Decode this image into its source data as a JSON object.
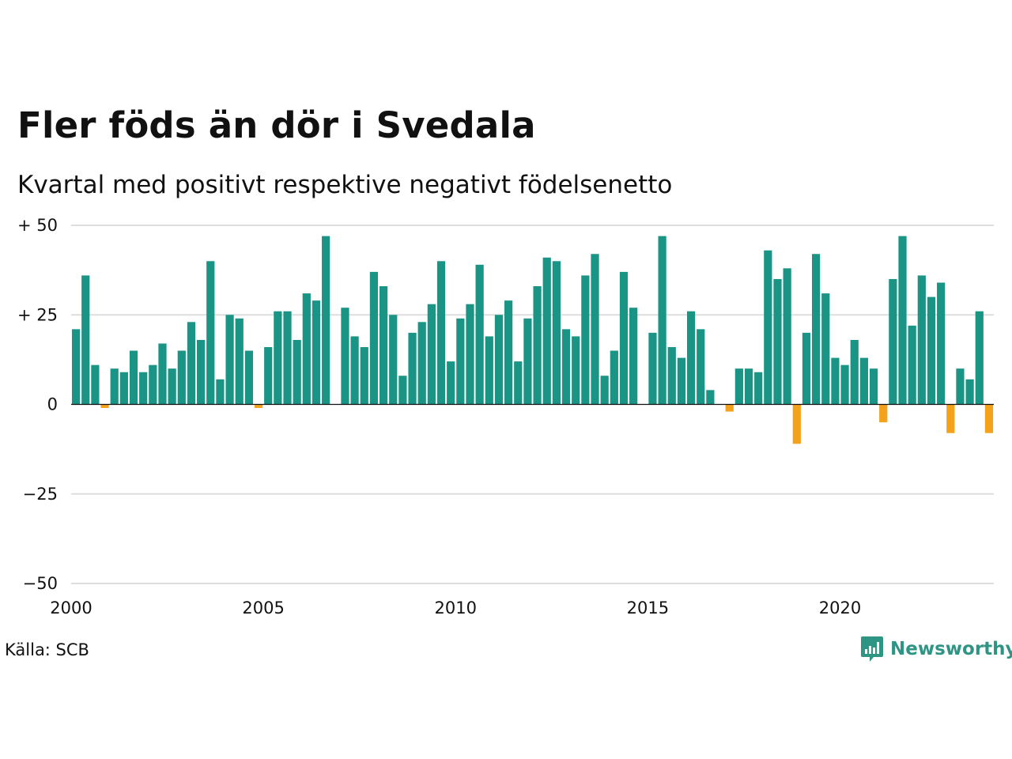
{
  "chart_data": {
    "type": "bar",
    "title": "Fler föds än dör i Svedala",
    "subtitle": "Kvartal med positivt respektive negativt födelsenetto",
    "source": "Källa: SCB",
    "ylim": [
      -50,
      50
    ],
    "y_ticks": [
      {
        "value": 50,
        "label": "+ 50"
      },
      {
        "value": 25,
        "label": "+ 25"
      },
      {
        "value": 0,
        "label": "0"
      },
      {
        "value": -25,
        "label": "−25"
      },
      {
        "value": -50,
        "label": "−50"
      }
    ],
    "x_ticks": [
      {
        "value": 2000,
        "label": "2000"
      },
      {
        "value": 2005,
        "label": "2005"
      },
      {
        "value": 2010,
        "label": "2010"
      },
      {
        "value": 2015,
        "label": "2015"
      },
      {
        "value": 2020,
        "label": "2020"
      }
    ],
    "x_start": 2000,
    "quarters_per_year": 4,
    "values": [
      21,
      36,
      11,
      -1,
      10,
      9,
      15,
      9,
      11,
      17,
      10,
      15,
      23,
      18,
      40,
      7,
      25,
      24,
      15,
      -1,
      16,
      26,
      26,
      18,
      31,
      29,
      47,
      0,
      27,
      19,
      16,
      37,
      33,
      25,
      8,
      20,
      23,
      28,
      40,
      12,
      24,
      28,
      39,
      19,
      25,
      29,
      12,
      24,
      33,
      41,
      40,
      21,
      19,
      36,
      42,
      8,
      15,
      37,
      27,
      0,
      20,
      47,
      16,
      13,
      26,
      21,
      4,
      0,
      -2,
      10,
      10,
      9,
      43,
      35,
      38,
      -11,
      20,
      42,
      31,
      13,
      11,
      18,
      13,
      10,
      -5,
      35,
      47,
      22,
      36,
      30,
      34,
      -8,
      10,
      7,
      26,
      -8
    ],
    "colors": {
      "positive": "#1a9484",
      "negative": "#f4a11c",
      "grid": "#dddddd",
      "zero_line": "#111111"
    }
  },
  "logo": {
    "text": "Newsworthy",
    "color": "#2e9484",
    "icon": "newsworthy-logo-icon"
  }
}
